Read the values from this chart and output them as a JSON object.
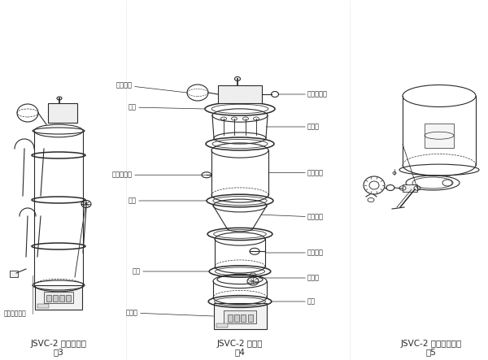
{
  "bg_color": "#ffffff",
  "line_color": "#2a2a2a",
  "fig3_title": "JSVC-2 管路连接图",
  "fig3_label": "图3",
  "fig4_title": "JSVC-2 结构图",
  "fig4_label": "图4",
  "fig5_title": "JSVC-2 放料门结构图",
  "fig5_label": "图5",
  "fig3_note": "压缩空气接入",
  "font_size_title": 7.5,
  "font_size_label": 6.0
}
